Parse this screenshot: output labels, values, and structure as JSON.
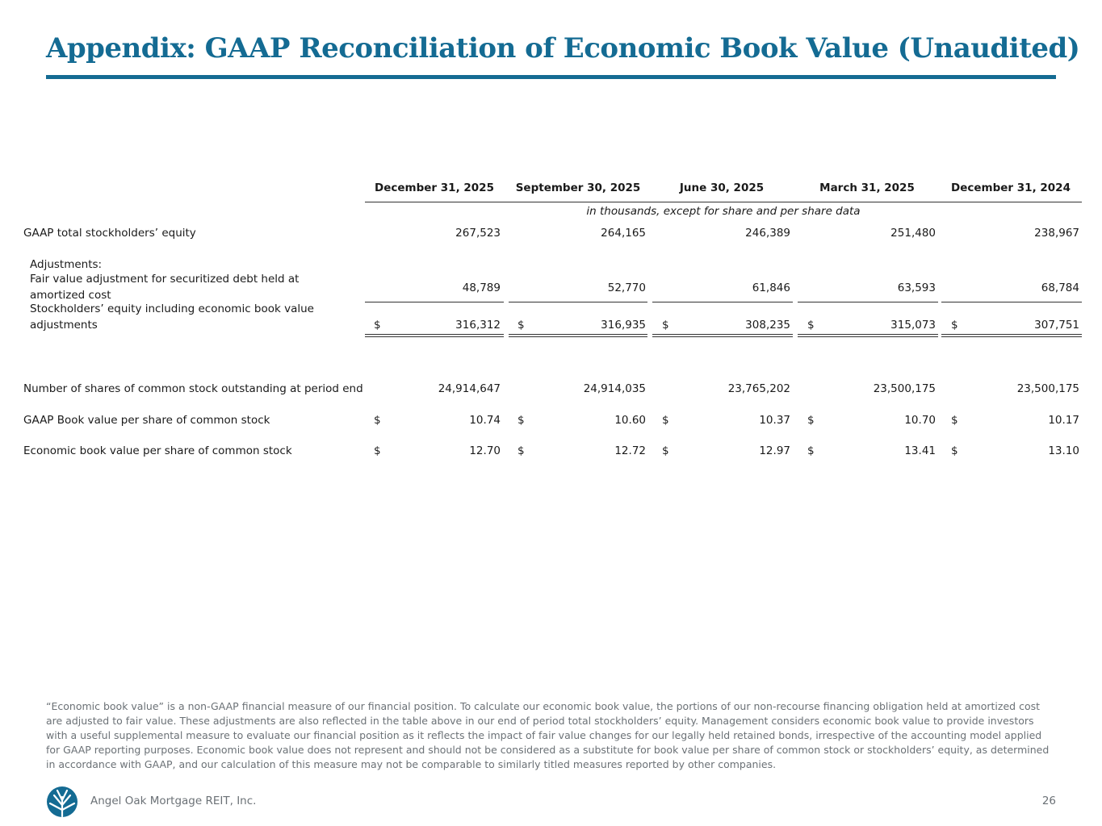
{
  "title": "Appendix: GAAP Reconciliation of Economic Book Value (Unaudited)",
  "table": {
    "columns": [
      "December 31, 2025",
      "September 30, 2025",
      "June 30, 2025",
      "March 31, 2025",
      "December 31, 2024"
    ],
    "units_note": "in thousands, except for share and per share data",
    "rows": {
      "gaap_equity": {
        "label": "GAAP total stockholders’ equity",
        "values": [
          "267,523",
          "264,165",
          "246,389",
          "251,480",
          "238,967"
        ]
      },
      "adjustments_label": "Adjustments:",
      "fair_value_adj": {
        "label_line1": "Fair value adjustment for securitized debt held at",
        "label_line2": "amortized cost",
        "values": [
          "48,789",
          "52,770",
          "61,846",
          "63,593",
          "68,784"
        ]
      },
      "equity_incl_ebv": {
        "label_line1": "Stockholders’ equity including economic book value",
        "label_line2": "adjustments",
        "currency": "$",
        "values": [
          "316,312",
          "316,935",
          "308,235",
          "315,073",
          "307,751"
        ]
      },
      "shares_outstanding": {
        "label": "Number of shares of common stock outstanding at period end",
        "values": [
          "24,914,647",
          "24,914,035",
          "23,765,202",
          "23,500,175",
          "23,500,175"
        ]
      },
      "gaap_bvps": {
        "label": "GAAP Book value per share of common stock",
        "currency": "$",
        "values": [
          "10.74",
          "10.60",
          "10.37",
          "10.70",
          "10.17"
        ]
      },
      "ebvps": {
        "label": "Economic book value per share of common stock",
        "currency": "$",
        "values": [
          "12.70",
          "12.72",
          "12.97",
          "13.41",
          "13.10"
        ]
      }
    }
  },
  "footnote": "“Economic book value” is a non-GAAP financial measure of our financial position. To calculate our economic book value, the portions of our non-recourse financing obligation held at amortized cost are adjusted to fair value. These adjustments are also reflected in the table above in our end of period total stockholders’ equity. Management considers economic book value to provide investors with a useful supplemental measure to evaluate our financial position as it reflects the impact of fair value changes for our legally held retained bonds, irrespective of the accounting model applied for GAAP reporting purposes. Economic book value does not represent and should not be considered as a substitute for book value per share of common stock or stockholders’ equity, as determined in accordance with GAAP, and our calculation of this measure may not be comparable to similarly titled measures reported by other companies.",
  "footer": {
    "company": "Angel Oak Mortgage REIT, Inc.",
    "page_number": "26",
    "logo_icon": "angel-oak-tree-logo-icon",
    "brand_color": "#146b93"
  }
}
